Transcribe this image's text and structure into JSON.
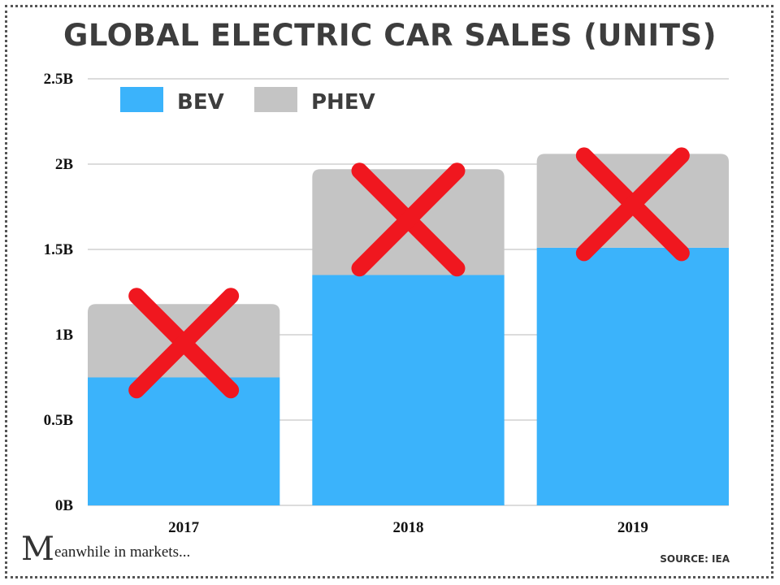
{
  "chart_data": {
    "type": "bar",
    "stacked": true,
    "title": "GLOBAL ELECTRIC CAR SALES (UNITS)",
    "categories": [
      "2017",
      "2018",
      "2019"
    ],
    "series": [
      {
        "name": "BEV",
        "color": "#3bb3fb",
        "values": [
          0.75,
          1.35,
          1.51
        ]
      },
      {
        "name": "PHEV",
        "color": "#c4c4c4",
        "values": [
          0.43,
          0.62,
          0.55
        ]
      }
    ],
    "yticks": [
      "0B",
      "0.5B",
      "1B",
      "1.5B",
      "2B",
      "2.5B"
    ],
    "ylim": [
      0,
      2.5
    ],
    "grid": true,
    "legend": "top-left",
    "annotation": "red X drawn over each bar",
    "annotation_color": "#f0171f"
  },
  "footer": {
    "brand_initial": "M",
    "brand_rest": "eanwhile in markets...",
    "source": "SOURCE: IEA"
  }
}
